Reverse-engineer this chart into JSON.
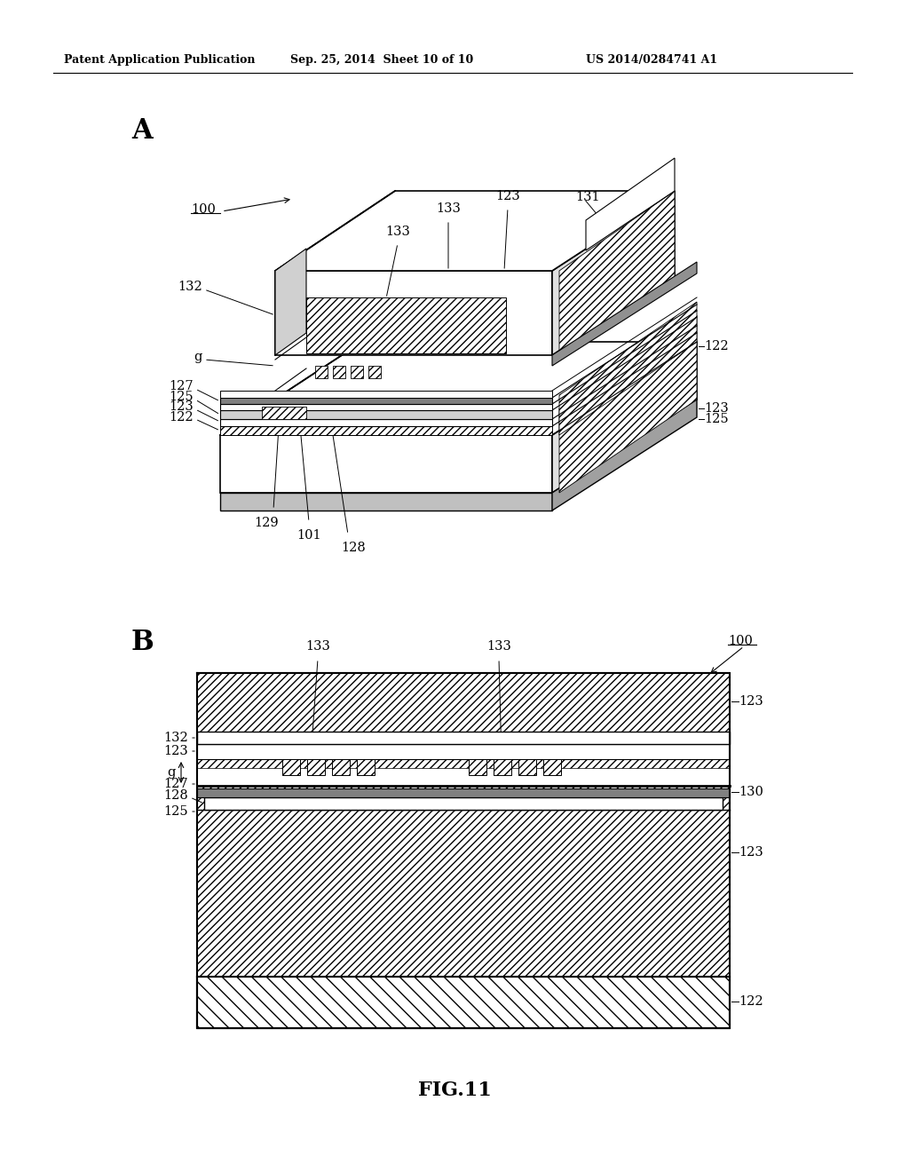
{
  "background_color": "#ffffff",
  "header_left": "Patent Application Publication",
  "header_center": "Sep. 25, 2014  Sheet 10 of 10",
  "header_right": "US 2014/0284741 A1",
  "fig_label_A": "A",
  "fig_label_B": "B",
  "fig_caption": "FIG.11",
  "label_font_size": 10.5
}
